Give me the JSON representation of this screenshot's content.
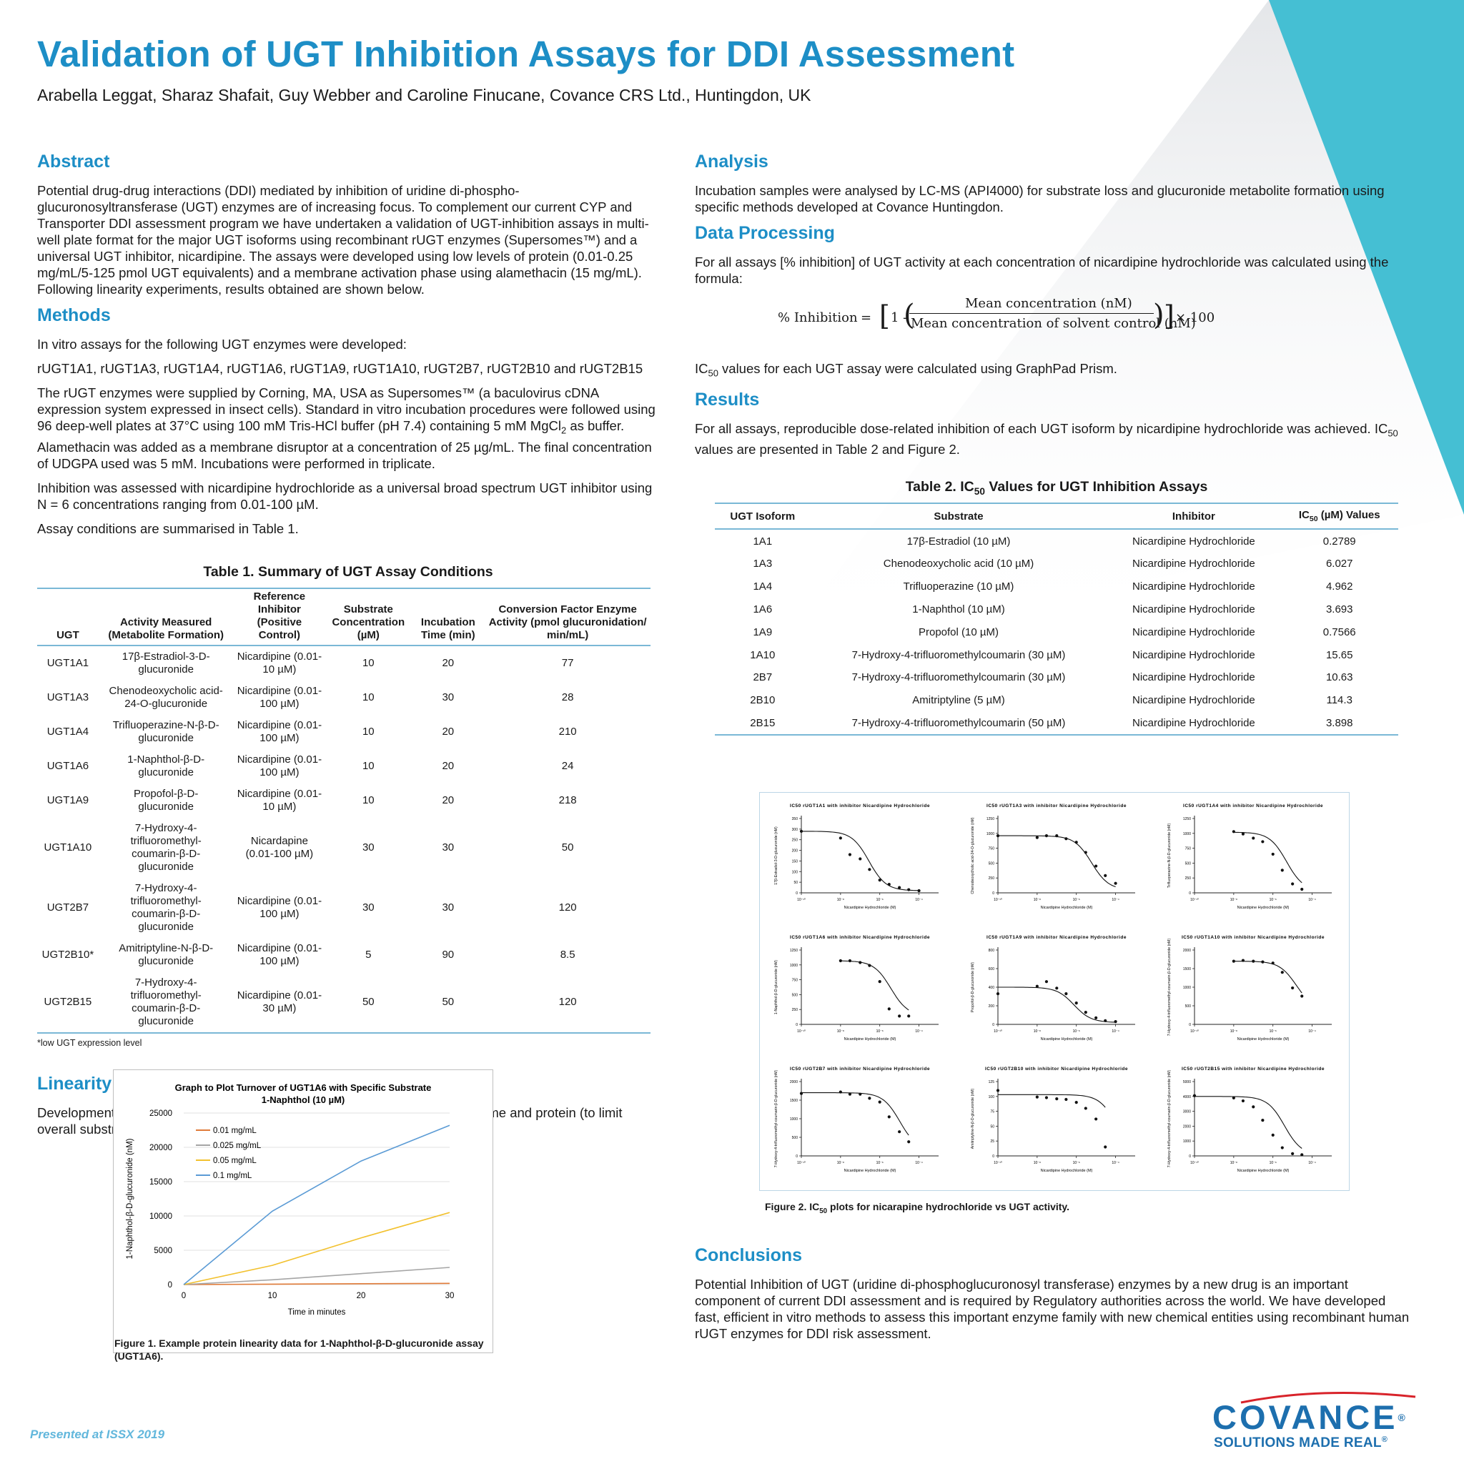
{
  "title": "Validation of UGT Inhibition Assays for DDI Assessment",
  "authors": "Arabella Leggat, Sharaz Shafait, Guy Webber and Caroline Finucane, Covance CRS Ltd., Huntingdon, UK",
  "abstract": {
    "heading": "Abstract",
    "text": "Potential drug-drug interactions (DDI) mediated by inhibition of uridine di-phospho-glucuronosyltransferase (UGT) enzymes are of increasing focus. To complement our current CYP and Transporter DDI assessment program we have undertaken a validation of UGT-inhibition assays in multi-well plate format for the major UGT isoforms using recombinant rUGT enzymes (Supersomes™) and a universal UGT inhibitor, nicardipine. The assays were developed using low levels of protein (0.01-0.25 mg/mL/5-125 pmol UGT equivalents) and a membrane activation phase using alamethacin (15 mg/mL). Following linearity experiments, results obtained are shown below."
  },
  "methods": {
    "heading": "Methods",
    "p1": "In vitro assays for the following UGT enzymes were developed:",
    "p2": "rUGT1A1, rUGT1A3, rUGT1A4, rUGT1A6, rUGT1A9, rUGT1A10, rUGT2B7, rUGT2B10 and rUGT2B15",
    "p3_a": "The rUGT enzymes were supplied by Corning, MA, USA as Supersomes™ (a baculovirus cDNA expression system expressed in insect cells). Standard in vitro incubation procedures were followed using 96 deep-well plates at 37°C using 100 mM Tris-HCl buffer (pH 7.4) containing 5 mM MgCl",
    "p3_sub": "2",
    "p3_b": " as buffer.  Alamethacin was added as a membrane disruptor at a concentration of 25 µg/mL. The final concentration of UDGPA used was 5 mM. Incubations were performed in triplicate.",
    "p4": "Inhibition was assessed with nicardipine hydrochloride as a universal broad spectrum UGT inhibitor using N = 6 concentrations ranging from 0.01-100 µM.",
    "p5": "Assay conditions are summarised in Table 1."
  },
  "table1": {
    "caption": "Table 1. Summary of UGT Assay Conditions",
    "headers": [
      "UGT",
      "Activity Measured (Metabolite Formation)",
      "Reference Inhibitor (Positive Control)",
      "Substrate Concentration (µM)",
      "Incubation Time (min)",
      "Conversion Factor Enzyme Activity (pmol glucuronidation/ min/mL)"
    ],
    "rows": [
      [
        "UGT1A1",
        "17β-Estradiol-3-D-glucuronide",
        "Nicardipine (0.01-10 µM)",
        "10",
        "20",
        "77"
      ],
      [
        "UGT1A3",
        "Chenodeoxycholic acid-24-O-glucuronide",
        "Nicardipine (0.01-100 µM)",
        "10",
        "30",
        "28"
      ],
      [
        "UGT1A4",
        "Trifluoperazine-N-β-D-glucuronide",
        "Nicardipine (0.01-100 µM)",
        "10",
        "20",
        "210"
      ],
      [
        "UGT1A6",
        "1-Naphthol-β-D-glucuronide",
        "Nicardipine (0.01-100 µM)",
        "10",
        "20",
        "24"
      ],
      [
        "UGT1A9",
        "Propofol-β-D-glucuronide",
        "Nicardipine (0.01-10 µM)",
        "10",
        "20",
        "218"
      ],
      [
        "UGT1A10",
        "7-Hydroxy-4-trifluoromethyl-coumarin-β-D-glucuronide",
        "Nicardapine (0.01-100 µM)",
        "30",
        "30",
        "50"
      ],
      [
        "UGT2B7",
        "7-Hydroxy-4-trifluoromethyl-coumarin-β-D-glucuronide",
        "Nicardipine (0.01-100 µM)",
        "30",
        "30",
        "120"
      ],
      [
        "UGT2B10*",
        "Amitriptyline-N-β-D-glucuronide",
        "Nicardipine (0.01-100 µM)",
        "5",
        "90",
        "8.5"
      ],
      [
        "UGT2B15",
        "7-Hydroxy-4-trifluoromethyl-coumarin-β-D-glucuronide",
        "Nicardipine (0.01-30 µM)",
        "50",
        "50",
        "120"
      ]
    ],
    "footnote": "*low UGT expression level"
  },
  "linearity": {
    "heading": "Linearity",
    "text": "Development of each assay included an assessment of reaction linearity vs time and protein (to limit overall substrate consumption to 5-15%). Figure 1 contains an example."
  },
  "figure1": {
    "caption": "Figure 1. Example protein linearity data for 1-Naphthol-β-D-glucuronide assay (UGT1A6)."
  },
  "analysis": {
    "heading": "Analysis",
    "text": "Incubation samples were analysed by LC-MS (API4000) for substrate loss and glucuronide metabolite formation using specific methods developed at Covance Huntingdon."
  },
  "data_processing": {
    "heading": "Data Processing",
    "text": "For all assays [% inhibition] of UGT activity at each concentration of nicardipine hydrochloride was calculated using the formula:",
    "formula_lhs": "% Inhibition",
    "formula_eq": "=",
    "formula_one": "1 -",
    "formula_num": "Mean concentration (nM)",
    "formula_den": "Mean concentration  of solvent control (nM)",
    "formula_mult": "× 100",
    "ic50_text_a": "IC",
    "ic50_text_sub": "50",
    "ic50_text_b": " values for each UGT assay were calculated using GraphPad Prism."
  },
  "results": {
    "heading": "Results",
    "text_a": "For all assays, reproducible dose-related inhibition of each UGT isoform by nicardipine hydrochloride was achieved. IC",
    "text_sub": "50",
    "text_b": " values are presented in Table 2 and Figure 2."
  },
  "table2": {
    "caption_a": "Table 2. IC",
    "caption_sub": "50",
    "caption_b": " Values for UGT Inhibition Assays",
    "headers": [
      "UGT Isoform",
      "Substrate",
      "Inhibitor",
      "IC50 (µM) Values"
    ],
    "header_ic_a": "IC",
    "header_ic_sub": "50",
    "header_ic_b": " (µM) Values",
    "rows": [
      [
        "1A1",
        "17β-Estradiol (10 µM)",
        "Nicardipine Hydrochloride",
        "0.2789"
      ],
      [
        "1A3",
        "Chenodeoxycholic acid (10 µM)",
        "Nicardipine Hydrochloride",
        "6.027"
      ],
      [
        "1A4",
        "Trifluoperazine (10 µM)",
        "Nicardipine Hydrochloride",
        "4.962"
      ],
      [
        "1A6",
        "1-Naphthol (10 µM)",
        "Nicardipine Hydrochloride",
        "3.693"
      ],
      [
        "1A9",
        "Propofol (10 µM)",
        "Nicardipine Hydrochloride",
        "0.7566"
      ],
      [
        "1A10",
        "7-Hydroxy-4-trifluoromethylcoumarin (30 µM)",
        "Nicardipine Hydrochloride",
        "15.65"
      ],
      [
        "2B7",
        "7-Hydroxy-4-trifluoromethylcoumarin (30 µM)",
        "Nicardipine Hydrochloride",
        "10.63"
      ],
      [
        "2B10",
        "Amitriptyline (5 µM)",
        "Nicardipine Hydrochloride",
        "114.3"
      ],
      [
        "2B15",
        "7-Hydroxy-4-trifluoromethylcoumarin (50 µM)",
        "Nicardipine Hydrochloride",
        "3.898"
      ]
    ]
  },
  "figure2": {
    "caption_a": "Figure 2. IC",
    "caption_sub": "50",
    "caption_b": " plots for nicarapine hydrochloride vs UGT activity."
  },
  "conclusions": {
    "heading": "Conclusions",
    "text": "Potential Inhibition of UGT (uridine di-phosphoglucuronosyl transferase) enzymes by a new drug is an important component of current DDI assessment and is required by Regulatory authorities across the world. We have developed fast, efficient in vitro methods to assess this important enzyme family with new chemical entities using recombinant human rUGT enzymes for DDI risk assessment."
  },
  "footer": {
    "presented": "Presented at ISSX 2019",
    "logo_word": "COVANCE",
    "logo_tag": "SOLUTIONS MADE REAL",
    "reg_mark": "®"
  },
  "colors": {
    "heading_blue": "#1d8ec6",
    "teal_accent": "#45bfd3",
    "covance_blue": "#1d6fae",
    "covance_red": "#d8232a"
  },
  "chart_data": [
    {
      "type": "line",
      "title": "Graph to Plot Turnover of UGT1A6 with Specific Substrate 1-Naphthol (10 µM)",
      "title_line1": "Graph to Plot Turnover of UGT1A6 with Specific Substrate",
      "title_line2": "1-Naphthol (10 µM)",
      "xlabel": "Time in minutes",
      "ylabel": "1-Naphthol-β-D-glucuronide (nM)",
      "x": [
        0,
        10,
        20,
        30
      ],
      "xlim": [
        0,
        30
      ],
      "ylim": [
        0,
        25000
      ],
      "yticks": [
        0,
        5000,
        10000,
        15000,
        20000,
        25000
      ],
      "xticks": [
        0,
        10,
        20,
        30
      ],
      "grid": true,
      "legend": "top-left",
      "series": [
        {
          "name": "0.01 mg/mL",
          "color": "#e07b39",
          "values": [
            0,
            60,
            120,
            180
          ]
        },
        {
          "name": "0.025 mg/mL",
          "color": "#a5a5a5",
          "values": [
            0,
            700,
            1600,
            2500
          ]
        },
        {
          "name": "0.05 mg/mL",
          "color": "#f2c12e",
          "values": [
            0,
            2800,
            6800,
            10500
          ]
        },
        {
          "name": "0.1 mg/mL",
          "color": "#5b9bd5",
          "values": [
            0,
            10700,
            18000,
            23200
          ]
        }
      ]
    },
    {
      "type": "scatter",
      "title": "IC50 plots (3x3 panel grid)",
      "xlabel": "Nicardipine Hydrochloride (M)",
      "x_scale": "log",
      "xlim": [
        1e-10,
        0.001
      ],
      "xtick_labels": [
        "10⁻¹⁰",
        "10⁻⁸",
        "10⁻⁶",
        "10⁻⁴"
      ],
      "panels": [
        {
          "title": "IC50 rUGT1A1 with inhibitor Nicardipine Hydrochloride",
          "ylabel": "17β-Estradiol-3-D-glucuronide (nM)",
          "ymax": 350,
          "yticks": [
            0,
            50,
            100,
            150,
            200,
            250,
            300,
            350
          ],
          "ic50_uM": 0.2789,
          "top": 290,
          "bottom": 10,
          "points": [
            [
              1e-10,
              290
            ],
            [
              1e-08,
              258
            ],
            [
              3e-08,
              180
            ],
            [
              1e-07,
              160
            ],
            [
              3e-07,
              110
            ],
            [
              1e-06,
              60
            ],
            [
              3e-06,
              40
            ],
            [
              1e-05,
              25
            ],
            [
              3e-05,
              15
            ],
            [
              0.0001,
              10
            ]
          ]
        },
        {
          "title": "IC50 rUGT1A3 with inhibitor Nicardipine Hydrochloride",
          "ylabel": "Chenodeoxycholic acid-24-O-glucuronide (nM)",
          "ymax": 1250,
          "yticks": [
            0,
            250,
            500,
            750,
            1000,
            1250
          ],
          "ic50_uM": 6.027,
          "top": 960,
          "bottom": 50,
          "points": [
            [
              1e-10,
              960
            ],
            [
              1e-08,
              930
            ],
            [
              3e-08,
              960
            ],
            [
              1e-07,
              960
            ],
            [
              3e-07,
              910
            ],
            [
              1e-06,
              850
            ],
            [
              3e-06,
              680
            ],
            [
              1e-05,
              450
            ],
            [
              3e-05,
              290
            ],
            [
              0.0001,
              160
            ]
          ]
        },
        {
          "title": "IC50 rUGT1A4 with inhibitor Nicardipine Hydrochloride",
          "ylabel": "Trifluoperazine-N-β-D-glucuronide (nM)",
          "ymax": 1250,
          "yticks": [
            0,
            250,
            500,
            750,
            1000,
            1250
          ],
          "ic50_uM": 4.962,
          "top": 1020,
          "bottom": 30,
          "points": [
            [
              1e-08,
              1030
            ],
            [
              3e-08,
              990
            ],
            [
              1e-07,
              920
            ],
            [
              3e-07,
              860
            ],
            [
              1e-06,
              650
            ],
            [
              3e-06,
              380
            ],
            [
              1e-05,
              150
            ],
            [
              3e-05,
              60
            ]
          ]
        },
        {
          "title": "IC50 rUGT1A6 with inhibitor Nicardipine Hydrochloride",
          "ylabel": "1-Naphthol-β-D-glucuronide (nM)",
          "ymax": 1250,
          "yticks": [
            0,
            250,
            500,
            750,
            1000,
            1250
          ],
          "ic50_uM": 3.693,
          "top": 1070,
          "bottom": 140,
          "points": [
            [
              1e-08,
              1070
            ],
            [
              3e-08,
              1070
            ],
            [
              1e-07,
              1040
            ],
            [
              3e-07,
              990
            ],
            [
              1e-06,
              720
            ],
            [
              3e-06,
              260
            ],
            [
              1e-05,
              140
            ],
            [
              3e-05,
              140
            ]
          ]
        },
        {
          "title": "IC50 rUGT1A9 with inhibitor Nicardipine Hydrochloride",
          "ylabel": "Propofol-β-D-glucuronide (nM)",
          "ymax": 800,
          "yticks": [
            0,
            200,
            400,
            600,
            800
          ],
          "ic50_uM": 0.7566,
          "top": 400,
          "bottom": 20,
          "points": [
            [
              1e-10,
              330
            ],
            [
              1e-08,
              410
            ],
            [
              3e-08,
              460
            ],
            [
              1e-07,
              390
            ],
            [
              3e-07,
              330
            ],
            [
              1e-06,
              230
            ],
            [
              3e-06,
              130
            ],
            [
              1e-05,
              70
            ],
            [
              3e-05,
              40
            ],
            [
              0.0001,
              30
            ]
          ]
        },
        {
          "title": "IC50 rUGT1A10 with inhibitor Nicardipine Hydrochloride",
          "ylabel": "7-Hydroxy-4-trifluoromethyl-coumarin-β-D-glucuronide (nM)",
          "ymax": 2000,
          "yticks": [
            0,
            500,
            1000,
            1500,
            2000
          ],
          "ic50_uM": 15.65,
          "top": 1700,
          "bottom": 400,
          "points": [
            [
              1e-08,
              1700
            ],
            [
              3e-08,
              1720
            ],
            [
              1e-07,
              1700
            ],
            [
              3e-07,
              1680
            ],
            [
              1e-06,
              1650
            ],
            [
              3e-06,
              1400
            ],
            [
              1e-05,
              980
            ],
            [
              3e-05,
              760
            ]
          ]
        },
        {
          "title": "IC50 rUGT2B7 with inhibitor Nicardipine Hydrochloride",
          "ylabel": "7-Hydroxy-4-trifluoromethyl-coumarin-β-D-glucuronide (nM)",
          "ymax": 2000,
          "yticks": [
            0,
            500,
            1000,
            1500,
            2000
          ],
          "ic50_uM": 10.63,
          "top": 1700,
          "bottom": 150,
          "points": [
            [
              1e-10,
              1680
            ],
            [
              1e-08,
              1720
            ],
            [
              3e-08,
              1660
            ],
            [
              1e-07,
              1660
            ],
            [
              3e-07,
              1550
            ],
            [
              1e-06,
              1450
            ],
            [
              3e-06,
              1050
            ],
            [
              1e-05,
              650
            ],
            [
              3e-05,
              380
            ]
          ]
        },
        {
          "title": "IC50 rUGT2B10 with inhibitor Nicardipine Hydrochloride",
          "ylabel": "Amitriptyline-N-β-D-glucuronide (nM)",
          "ymax": 125,
          "yticks": [
            0,
            25,
            50,
            75,
            100,
            125
          ],
          "ic50_uM": 114.3,
          "top": 103,
          "bottom": 0,
          "points": [
            [
              1e-10,
              110
            ],
            [
              1e-08,
              99
            ],
            [
              3e-08,
              98
            ],
            [
              1e-07,
              96
            ],
            [
              3e-07,
              95
            ],
            [
              1e-06,
              90
            ],
            [
              3e-06,
              80
            ],
            [
              1e-05,
              62
            ],
            [
              3e-05,
              15
            ]
          ]
        },
        {
          "title": "IC50 rUGT2B15 with inhibitor Nicardipine Hydrochloride",
          "ylabel": "7-Hydroxy-4-trifluoromethyl-coumarin-β-D-glucuronide (nM)",
          "ymax": 5000,
          "yticks": [
            0,
            1000,
            2000,
            3000,
            4000,
            5000
          ],
          "ic50_uM": 3.898,
          "top": 4000,
          "bottom": 50,
          "points": [
            [
              1e-10,
              4050
            ],
            [
              1e-08,
              3900
            ],
            [
              3e-08,
              3700
            ],
            [
              1e-07,
              3300
            ],
            [
              3e-07,
              2400
            ],
            [
              1e-06,
              1400
            ],
            [
              3e-06,
              550
            ],
            [
              1e-05,
              150
            ],
            [
              3e-05,
              80
            ]
          ]
        }
      ]
    }
  ]
}
